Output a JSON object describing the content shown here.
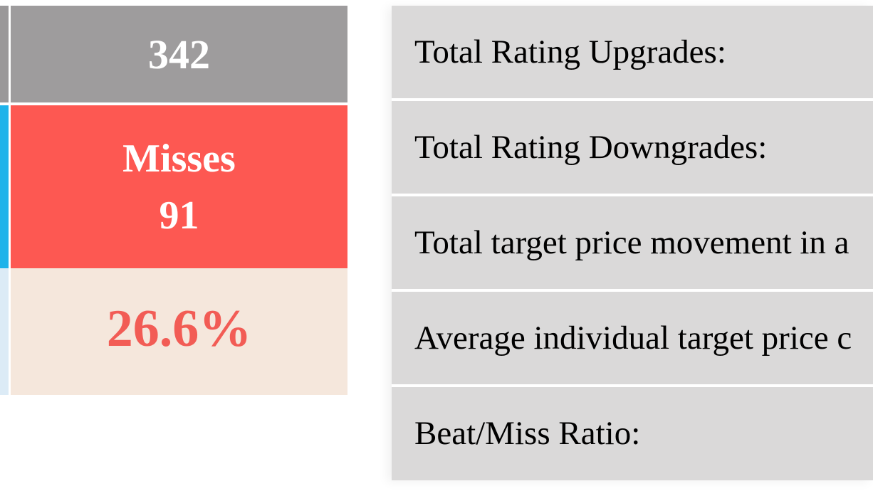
{
  "stats": {
    "total_value": "342",
    "misses_label": "Misses",
    "misses_value": "91",
    "miss_percent": "26.6%"
  },
  "metrics": [
    {
      "label": "Total Rating Upgrades:"
    },
    {
      "label": "Total Rating Downgrades:"
    },
    {
      "label": "Total target price movement in a"
    },
    {
      "label": "Average individual target price c"
    },
    {
      "label": "Beat/Miss Ratio:"
    }
  ],
  "colors": {
    "total_bg": "#9e9c9d",
    "misses_bg": "#fd5852",
    "percent_bg": "#f5e7dc",
    "percent_text": "#f25c55",
    "accent_blue": "#1fb3ea",
    "metric_row_bg": "#dad9d9"
  }
}
